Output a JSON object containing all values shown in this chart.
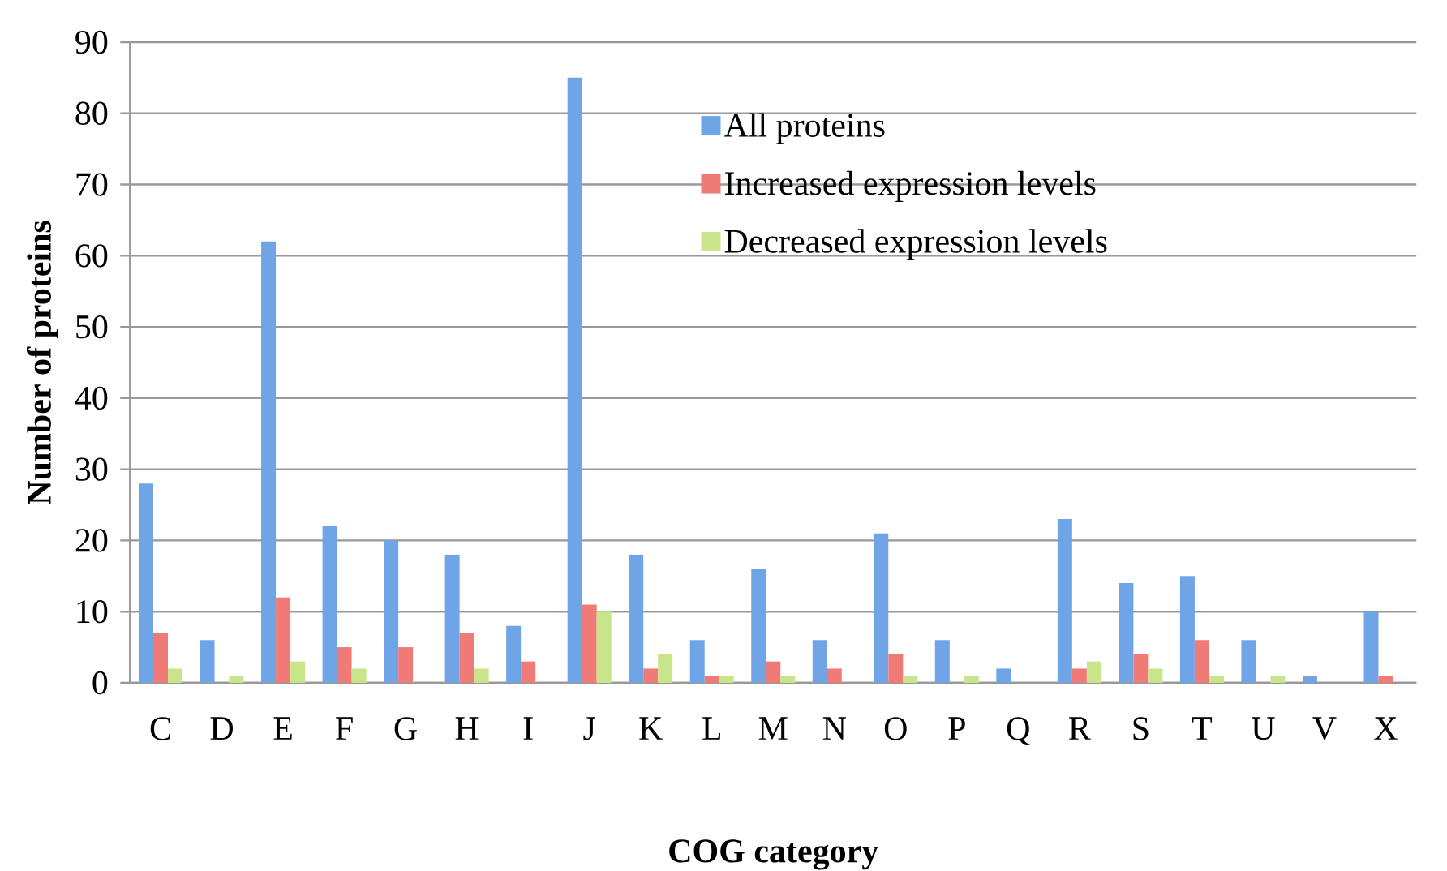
{
  "chart_data": {
    "type": "bar",
    "xlabel": "COG category",
    "ylabel": "Number of proteins",
    "categories": [
      "C",
      "D",
      "E",
      "F",
      "G",
      "H",
      "I",
      "J",
      "K",
      "L",
      "M",
      "N",
      "O",
      "P",
      "Q",
      "R",
      "S",
      "T",
      "U",
      "V",
      "X"
    ],
    "series": [
      {
        "name": "All proteins",
        "color": "#6fa4e6",
        "values": [
          28,
          6,
          62,
          22,
          20,
          18,
          8,
          85,
          18,
          6,
          16,
          6,
          21,
          6,
          2,
          23,
          14,
          15,
          6,
          1,
          10
        ]
      },
      {
        "name": "Increased expression levels",
        "color": "#f07a75",
        "values": [
          7,
          0,
          12,
          5,
          5,
          7,
          3,
          11,
          2,
          1,
          3,
          2,
          4,
          0,
          0,
          2,
          4,
          6,
          0,
          0,
          1
        ]
      },
      {
        "name": "Decreased expression levels",
        "color": "#c8e58a",
        "values": [
          2,
          1,
          3,
          2,
          0,
          2,
          0,
          10,
          4,
          1,
          1,
          0,
          1,
          1,
          0,
          3,
          2,
          1,
          1,
          0,
          0
        ]
      }
    ],
    "ylim": [
      0,
      90
    ],
    "yticks": [
      0,
      10,
      20,
      30,
      40,
      50,
      60,
      70,
      80,
      90
    ],
    "grid": "y",
    "legend": "top right"
  }
}
